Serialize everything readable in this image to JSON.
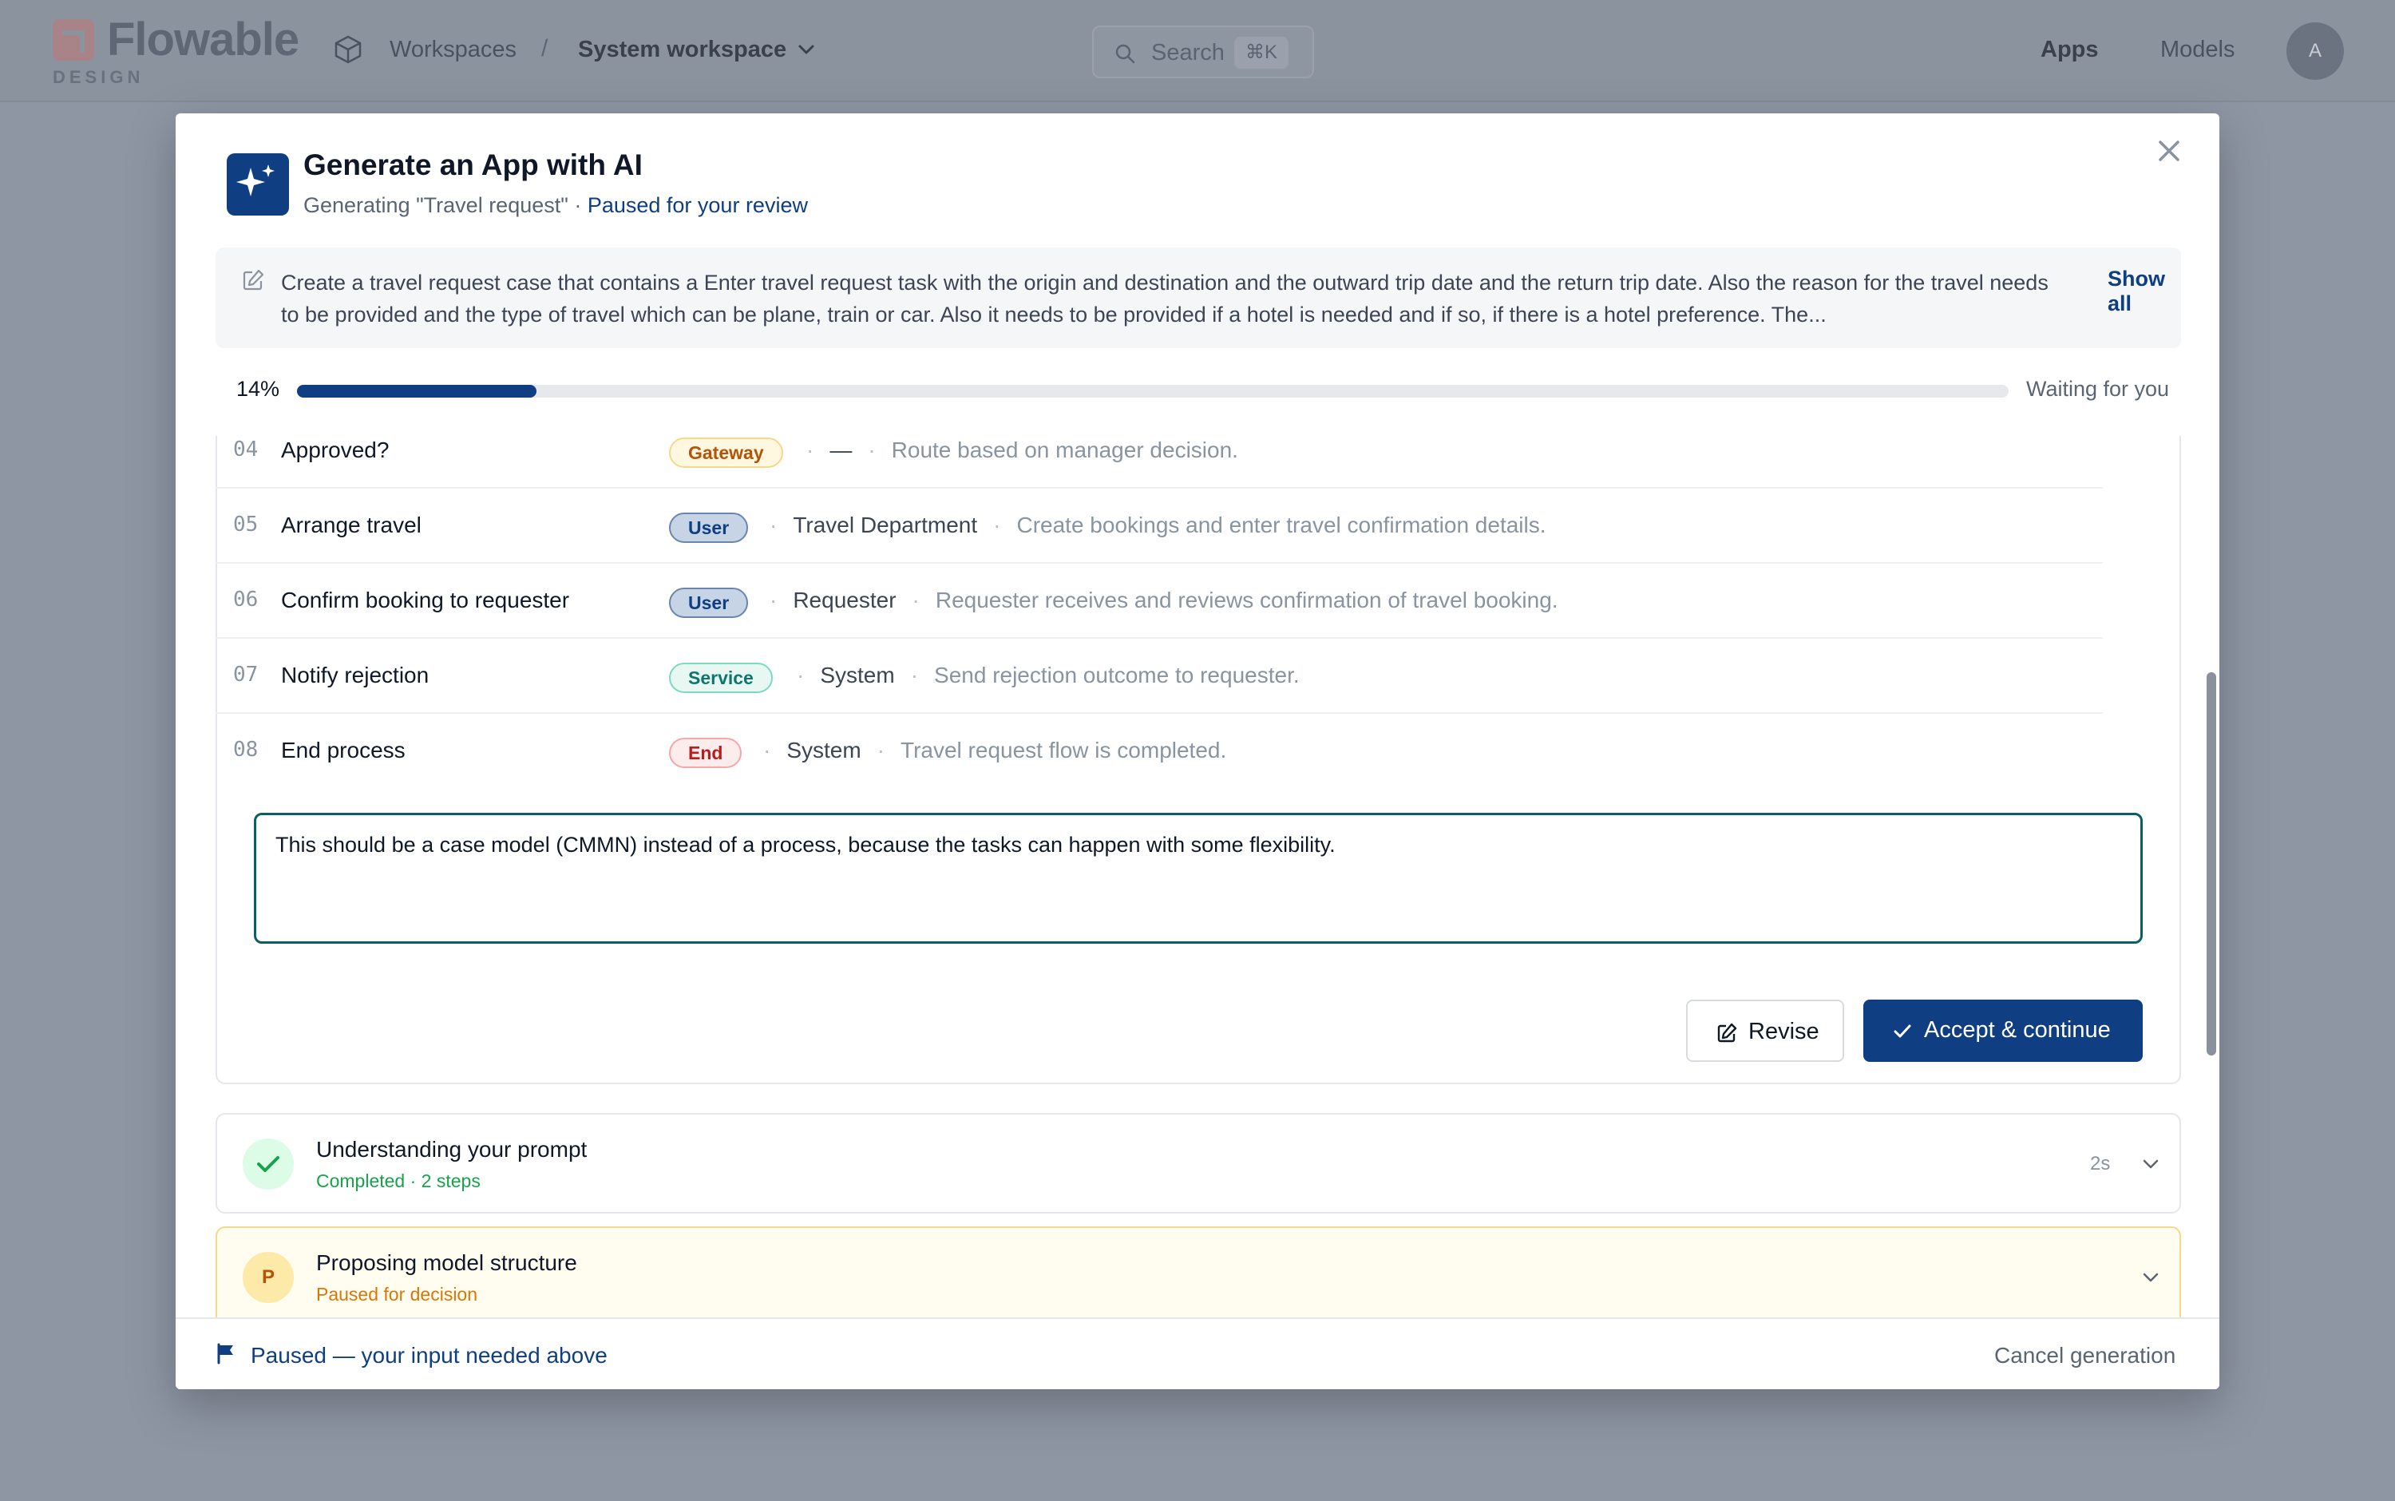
{
  "app": {
    "logo_text": "Flowable",
    "logo_sub": "DESIGN",
    "breadcrumb": {
      "root": "Workspaces",
      "separator": "/",
      "current": "System workspace"
    },
    "search": {
      "placeholder": "Search",
      "shortcut": "⌘K"
    },
    "nav": {
      "apps": "Apps",
      "models": "Models"
    },
    "avatar_initial": "A"
  },
  "modal": {
    "title": "Generate an App with AI",
    "subtitle_prefix": "Generating \"Travel request\" · ",
    "subtitle_status": "Paused for your review",
    "prompt": "Create a travel request case that contains a Enter travel request task with the origin and destination and the outward trip date and the return trip date. Also the reason for the travel needs to be provided and the type of travel which can be plane, train or car. Also it needs to be provided if a hotel is needed and if so, if there is a hotel preference. The...",
    "show_all": "Show all",
    "progress": {
      "percent": 14,
      "label": "14%",
      "status": "Waiting for you"
    },
    "steps": [
      {
        "num": "04",
        "name": "Approved?",
        "type": "Gateway",
        "type_style": "gw",
        "assignee": "—",
        "description": "Route based on manager decision."
      },
      {
        "num": "05",
        "name": "Arrange travel",
        "type": "User",
        "type_style": "user",
        "assignee": "Travel Department",
        "description": "Create bookings and enter travel confirmation details."
      },
      {
        "num": "06",
        "name": "Confirm booking to requester",
        "type": "User",
        "type_style": "user",
        "assignee": "Requester",
        "description": "Requester receives and reviews confirmation of travel booking."
      },
      {
        "num": "07",
        "name": "Notify rejection",
        "type": "Service",
        "type_style": "svc",
        "assignee": "System",
        "description": "Send rejection outcome to requester."
      },
      {
        "num": "08",
        "name": "End process",
        "type": "End",
        "type_style": "end",
        "assignee": "System",
        "description": "Travel request flow is completed."
      }
    ],
    "feedback_value": "This should be a case model (CMMN) instead of a process, because the tasks can happen with some flexibility.",
    "revise_label": "Revise",
    "accept_label": "Accept & continue",
    "phases": [
      {
        "title": "Understanding your prompt",
        "status": "Completed · 2 steps",
        "time": "2s"
      },
      {
        "title": "Proposing model structure",
        "status": "Paused for decision",
        "badge": "P"
      }
    ],
    "footer": {
      "message": "Paused — your input needed above",
      "cancel": "Cancel generation"
    }
  },
  "colors": {
    "accent": "#0f3f82",
    "success": "#16a34a",
    "warning": "#d97706",
    "feedback_border": "#0b5e63"
  }
}
